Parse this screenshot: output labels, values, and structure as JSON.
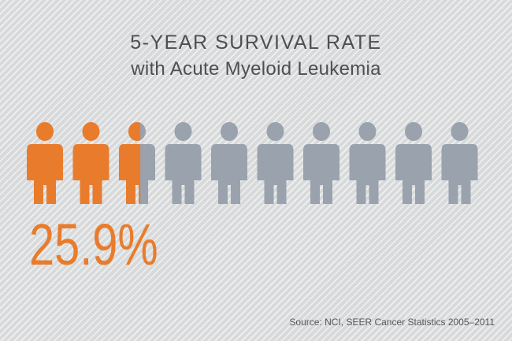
{
  "title": "5-YEAR SURVIVAL RATE",
  "subtitle": "with Acute Myeloid Leukemia",
  "percent_label": "25.9%",
  "source": "Source: NCI, SEER Cancer Statistics 2005–2011",
  "colors": {
    "filled": "#e97c2c",
    "empty": "#9aa2ad",
    "text": "#4d4f52"
  },
  "chart_data": {
    "type": "bar",
    "categories": [
      "5-year survival"
    ],
    "values": [
      25.9
    ],
    "unit": "%",
    "icon_count": 10,
    "icon": "person-icon",
    "title": "5-YEAR SURVIVAL RATE",
    "subtitle": "with Acute Myeloid Leukemia",
    "ylim": [
      0,
      100
    ]
  }
}
